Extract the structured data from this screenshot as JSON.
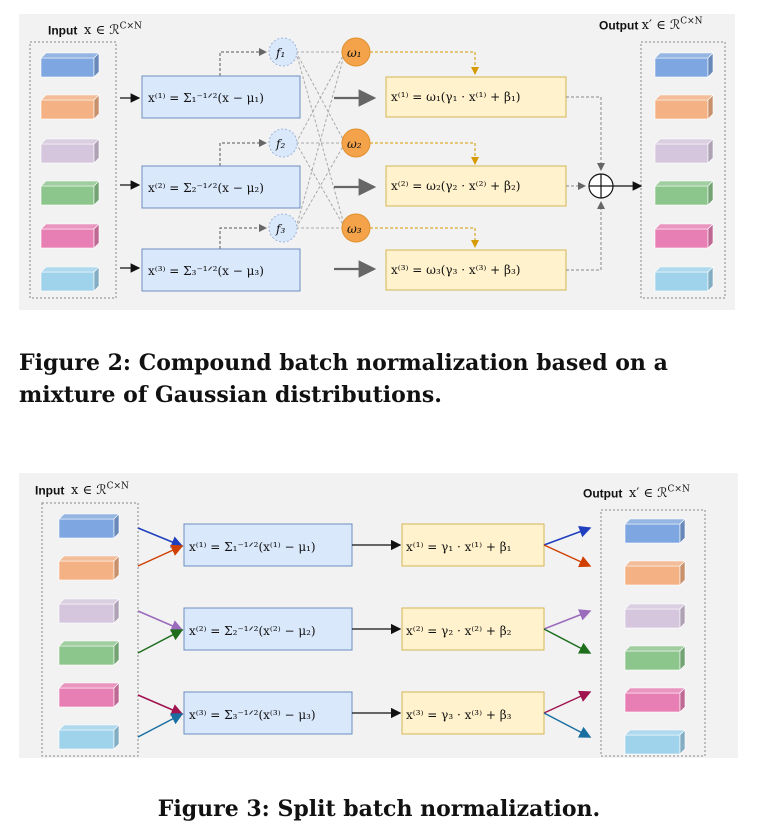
{
  "fig2": {
    "input_label": "Input",
    "input_math": "x ∈ ℛ",
    "input_sup": "C×N",
    "output_label": "Output",
    "output_math": "x′ ∈ ℛ",
    "output_sup": "C×N",
    "norm_boxes": [
      "x⁽¹⁾ = Σ₁⁻¹ᐟ²(x − μ₁)",
      "x⁽²⁾ = Σ₂⁻¹ᐟ²(x − μ₂)",
      "x⁽³⁾ = Σ₃⁻¹ᐟ²(x − μ₃)"
    ],
    "affine_boxes": [
      "x⁽¹⁾ = ω₁(γ₁ · x⁽¹⁾ + β₁)",
      "x⁽²⁾ = ω₂(γ₂ · x⁽²⁾ + β₂)",
      "x⁽³⁾ = ω₃(γ₃ · x⁽³⁾ + β₃)"
    ],
    "f_nodes": [
      "f₁",
      "f₂",
      "f₃"
    ],
    "w_nodes": [
      "ω₁",
      "ω₂",
      "ω₃"
    ],
    "sum_icon": "circle-plus-icon"
  },
  "caption2": "Figure 2: Compound batch normalization based on a mixture of Gaussian distributions.",
  "fig3": {
    "input_label": "Input",
    "input_math": "x ∈ ℛ",
    "input_sup": "C×N",
    "output_label": "Output",
    "output_math": "x′ ∈ ℛ",
    "output_sup": "C×N",
    "norm_boxes": [
      "x⁽¹⁾ = Σ₁⁻¹ᐟ²(x⁽¹⁾ − μ₁)",
      "x⁽²⁾ = Σ₂⁻¹ᐟ²(x⁽²⁾ − μ₂)",
      "x⁽³⁾ = Σ₃⁻¹ᐟ²(x⁽³⁾ − μ₃)"
    ],
    "affine_boxes": [
      "x⁽¹⁾ = γ₁ · x⁽¹⁾ + β₁",
      "x⁽²⁾ = γ₂ · x⁽²⁾ + β₂",
      "x⁽³⁾ = γ₃ · x⁽³⁾ + β₃"
    ]
  },
  "caption3": "Figure 3: Split batch normalization.",
  "colors": {
    "blue": "#7ea6e0",
    "orange": "#f4b183",
    "lavender": "#d5c6dd",
    "green": "#8cc68c",
    "pink": "#e87fb4",
    "cyan": "#9fd3ec",
    "norm_fill": "#dae8fc",
    "norm_stroke": "#6c8ebf",
    "affine_fill": "#fff2cc",
    "affine_stroke": "#d6b656",
    "f_fill": "#dae8fc",
    "w_fill": "#f5a34a"
  }
}
